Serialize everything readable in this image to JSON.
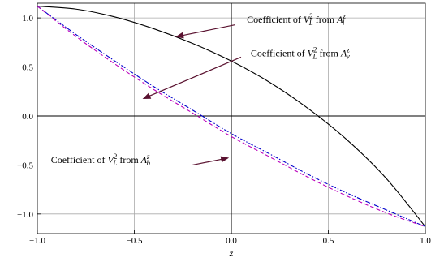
{
  "chart_data": {
    "type": "line",
    "title": "",
    "xlabel": "z",
    "ylabel": "",
    "xlim": [
      -1.0,
      1.0
    ],
    "ylim": [
      -1.2,
      1.15
    ],
    "grid": true,
    "x_ticks": [
      -1.0,
      -0.5,
      0.0,
      0.5,
      1.0
    ],
    "y_ticks": [
      -1.0,
      -0.5,
      0.0,
      0.5,
      1.0
    ],
    "x_tick_labels": [
      "−1.0",
      "−0.5",
      "0.0",
      "0.5",
      "1.0"
    ],
    "y_tick_labels": [
      "−1.0",
      "−0.5",
      "0.0",
      "0.5",
      "1.0"
    ],
    "series": [
      {
        "color": "#000000",
        "style": "solid",
        "x": [
          -1.0,
          -0.8,
          -0.6,
          -0.4,
          -0.2,
          0.0,
          0.2,
          0.4,
          0.6,
          0.8,
          1.0
        ],
        "y": [
          1.12,
          1.09,
          1.01,
          0.89,
          0.74,
          0.56,
          0.34,
          0.07,
          -0.25,
          -0.64,
          -1.13
        ]
      },
      {
        "color": "#0000cc",
        "style": "dashdot",
        "x": [
          -1.0,
          -0.8,
          -0.6,
          -0.4,
          -0.2,
          0.0,
          0.2,
          0.4,
          0.6,
          0.8,
          1.0
        ],
        "y": [
          1.12,
          0.83,
          0.56,
          0.3,
          0.06,
          -0.18,
          -0.39,
          -0.6,
          -0.79,
          -0.96,
          -1.13
        ]
      },
      {
        "color": "#bb00bb",
        "style": "dashed",
        "x": [
          -1.0,
          -0.8,
          -0.6,
          -0.4,
          -0.2,
          0.0,
          0.2,
          0.4,
          0.6,
          0.8,
          1.0
        ],
        "y": [
          1.12,
          0.81,
          0.53,
          0.27,
          0.03,
          -0.21,
          -0.42,
          -0.63,
          -0.82,
          -0.99,
          -1.13
        ]
      }
    ],
    "annotations": [
      {
        "prefix": "Coefficient of ",
        "v": "V",
        "vsub": "L",
        "vsup": "2",
        "mid": " from ",
        "a": "A",
        "asub": "l",
        "asup": "z",
        "arrow_from": [
          0.02,
          0.93
        ],
        "arrow_to": [
          -0.28,
          0.81
        ],
        "text_at": [
          0.08,
          0.95
        ]
      },
      {
        "prefix": "Coefficient of ",
        "v": "V",
        "vsub": "L",
        "vsup": "2",
        "mid": " from ",
        "a": "A",
        "asub": "ν",
        "asup": "z",
        "arrow_from": [
          0.05,
          0.6
        ],
        "arrow_to": [
          -0.45,
          0.18
        ],
        "text_at": [
          0.1,
          0.61
        ]
      },
      {
        "prefix": "Coefficient of ",
        "v": "V",
        "vsub": "L",
        "vsup": "2",
        "mid": " from ",
        "a": "A",
        "asub": "b",
        "asup": "z",
        "arrow_from": [
          -0.2,
          -0.5
        ],
        "arrow_to": [
          -0.02,
          -0.43
        ],
        "text_at": [
          -0.93,
          -0.48
        ]
      }
    ]
  }
}
